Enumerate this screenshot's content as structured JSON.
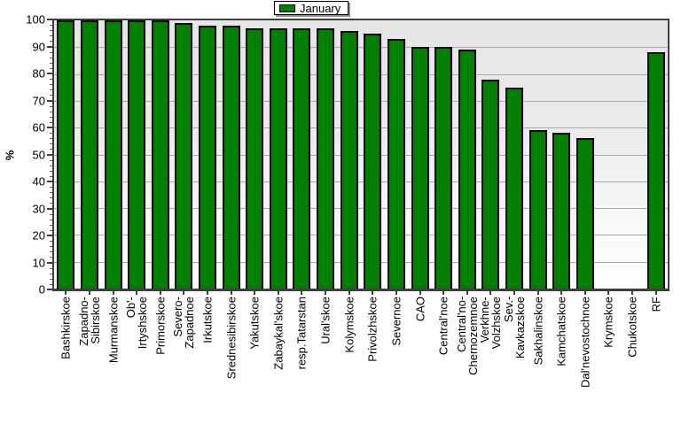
{
  "legend": {
    "label": "January",
    "swatch_color": "#008000"
  },
  "y_axis": {
    "title": "%",
    "ticks": [
      0,
      10,
      20,
      30,
      40,
      50,
      60,
      70,
      80,
      90,
      100
    ],
    "minor_step": 2
  },
  "colors": {
    "bar_fill": "#008000",
    "bar_border": "#000000",
    "grid": "#a9a9a9",
    "axis": "#3f3f3f",
    "plot_bg_top": "#e6e6e6",
    "plot_bg_bottom": "#ffffff",
    "legend_shadow": "#8e8e8e"
  },
  "chart_data": {
    "type": "bar",
    "title": "",
    "xlabel": "",
    "ylabel": "%",
    "ylim": [
      0,
      100
    ],
    "grid": "horizontal",
    "legend_position": "top-center",
    "legend_entries": [
      "January"
    ],
    "categories": [
      "Bashkirskoe",
      "Zapadno-\nSibirskoe",
      "Murmanskoe",
      "Ob'-\nIrtyshskoe",
      "Primorskoe",
      "Severo-\nZapadnoe",
      "Irkutskoe",
      "Srednesibirskoe",
      "Yakutskoe",
      "Zabaykal'skoe",
      "resp.Tatarstan",
      "Ural'skoe",
      "Kolymskoe",
      "Privolzhskoe",
      "Severnoe",
      "CAO",
      "Central'noe",
      "Central'no-\nChernozemnoe",
      "Verkhne-\nVolzhskoe",
      "Sev.-\nKavkazskoe",
      "Sakhalinskoe",
      "Kamchatskoe",
      "Dal'nevostochnoe",
      "Krymskoe",
      "Chukotskoe",
      "RF"
    ],
    "series": [
      {
        "name": "January",
        "values": [
          100,
          100,
          100,
          100,
          100,
          99,
          98,
          98,
          97,
          97,
          97,
          97,
          96,
          95,
          93,
          90,
          90,
          89,
          78,
          75,
          59,
          58,
          56,
          0,
          0,
          88
        ]
      }
    ]
  }
}
